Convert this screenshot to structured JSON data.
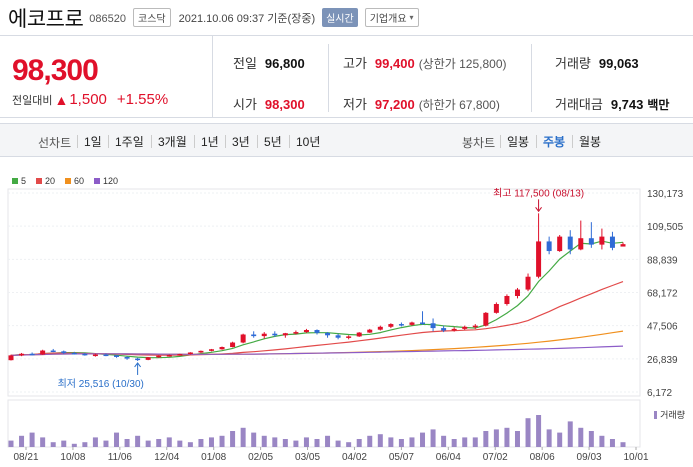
{
  "header": {
    "title": "에코프로",
    "code": "086520",
    "market": "코스닥",
    "datetime": "2021.10.06 09:37 기준(장중)",
    "realtime": "실시간",
    "overview": "기업개요"
  },
  "quote": {
    "price": "98,300",
    "change_label": "전일대비",
    "change_arrow": "▲",
    "change": "1,500",
    "change_pct": "+1.55%",
    "prev_close_label": "전일",
    "prev_close": "96,800",
    "high_label": "고가",
    "high": "99,400",
    "upper_limit": "(상한가 125,800)",
    "volume_label": "거래량",
    "volume": "99,063",
    "open_label": "시가",
    "open": "98,300",
    "low_label": "저가",
    "low": "97,200",
    "lower_limit": "(하한가 67,800)",
    "trade_value_label": "거래대금",
    "trade_value": "9,743",
    "trade_value_unit": "백만"
  },
  "tabs": {
    "line_label": "선차트",
    "line": [
      "1일",
      "1주일",
      "3개월",
      "1년",
      "3년",
      "5년",
      "10년"
    ],
    "candle_label": "봉차트",
    "candle": [
      "일봉",
      "주봉",
      "월봉"
    ],
    "active": "주봉"
  },
  "colors": {
    "up": "#e0102a",
    "down": "#2f6bd6",
    "ma5": "#44aa44",
    "ma20": "#e24a4a",
    "ma60": "#f0901e",
    "ma120": "#8c5cc8",
    "volume": "#9a86c4"
  },
  "chart_data": {
    "type": "candlestick",
    "legend": [
      {
        "name": "5",
        "color": "#44aa44"
      },
      {
        "name": "20",
        "color": "#e24a4a"
      },
      {
        "name": "60",
        "color": "#f0901e"
      },
      {
        "name": "120",
        "color": "#8c5cc8"
      }
    ],
    "y_ticks": [
      "130,173",
      "109,505",
      "88,839",
      "68,172",
      "47,506",
      "26,839",
      "6,172"
    ],
    "ylim": [
      6172,
      130173
    ],
    "x_ticks": [
      "08/21",
      "10/08",
      "11/06",
      "12/04",
      "01/08",
      "02/05",
      "03/05",
      "04/02",
      "05/07",
      "06/04",
      "07/02",
      "08/06",
      "09/03",
      "10/01"
    ],
    "annotations": {
      "high": "최고 117,500 (08/13)",
      "low": "최저 25,516 (10/30)"
    },
    "volume_label": "거래량",
    "candles": [
      [
        26000,
        29500,
        25800,
        29000
      ],
      [
        29000,
        30500,
        28500,
        30000
      ],
      [
        30000,
        30800,
        29000,
        29500
      ],
      [
        29500,
        32500,
        29300,
        32000
      ],
      [
        32000,
        33000,
        31000,
        31500
      ],
      [
        31500,
        32000,
        29800,
        30500
      ],
      [
        30500,
        31200,
        29500,
        30000
      ],
      [
        30000,
        30500,
        28800,
        29000
      ],
      [
        29000,
        30000,
        28200,
        29500
      ],
      [
        29500,
        30200,
        28500,
        29000
      ],
      [
        29000,
        29200,
        27500,
        28000
      ],
      [
        28000,
        28300,
        26200,
        27000
      ],
      [
        27000,
        27500,
        25516,
        26200
      ],
      [
        26200,
        28000,
        26000,
        27800
      ],
      [
        27800,
        29000,
        27500,
        28800
      ],
      [
        28800,
        29500,
        28200,
        29200
      ],
      [
        29200,
        30000,
        28800,
        29800
      ],
      [
        29800,
        31000,
        29500,
        30800
      ],
      [
        30800,
        32000,
        30500,
        31800
      ],
      [
        31800,
        33000,
        31500,
        32800
      ],
      [
        32800,
        34500,
        32500,
        34200
      ],
      [
        34200,
        37500,
        34000,
        37000
      ],
      [
        37000,
        42500,
        36500,
        42000
      ],
      [
        42000,
        44000,
        40000,
        41000
      ],
      [
        41000,
        43500,
        39500,
        42500
      ],
      [
        42500,
        44000,
        40500,
        41500
      ],
      [
        41500,
        43000,
        40000,
        42800
      ],
      [
        42800,
        44500,
        42000,
        43500
      ],
      [
        43500,
        45500,
        43000,
        44800
      ],
      [
        44800,
        45200,
        42000,
        43000
      ],
      [
        43000,
        43500,
        40000,
        41500
      ],
      [
        41500,
        42500,
        39000,
        40000
      ],
      [
        40000,
        41500,
        39000,
        40800
      ],
      [
        40800,
        43500,
        40500,
        43200
      ],
      [
        43200,
        45500,
        43000,
        45000
      ],
      [
        45000,
        47500,
        44500,
        46800
      ],
      [
        46800,
        49000,
        46000,
        48500
      ],
      [
        48500,
        49500,
        47000,
        48000
      ],
      [
        48000,
        50000,
        47500,
        49500
      ],
      [
        49500,
        56500,
        48000,
        49000
      ],
      [
        49000,
        52000,
        44000,
        46000
      ],
      [
        46000,
        47500,
        43500,
        44500
      ],
      [
        44500,
        46500,
        43800,
        45500
      ],
      [
        45500,
        47500,
        44800,
        46800
      ],
      [
        46800,
        48500,
        45500,
        47500
      ],
      [
        47500,
        56000,
        47000,
        55500
      ],
      [
        55500,
        62000,
        55000,
        61000
      ],
      [
        61000,
        67000,
        60000,
        66000
      ],
      [
        66000,
        71000,
        64500,
        70000
      ],
      [
        70000,
        80000,
        69000,
        78000
      ],
      [
        78000,
        117500,
        77000,
        100000
      ],
      [
        100000,
        103000,
        92000,
        94000
      ],
      [
        94000,
        104000,
        93500,
        103000
      ],
      [
        103000,
        107000,
        92000,
        95000
      ],
      [
        95000,
        113000,
        94500,
        102000
      ],
      [
        102000,
        112000,
        96000,
        98000
      ],
      [
        98000,
        108000,
        95000,
        103000
      ],
      [
        103000,
        106000,
        94500,
        96000
      ],
      [
        96800,
        99400,
        97200,
        98300
      ]
    ],
    "volumes": [
      0.2,
      0.35,
      0.45,
      0.3,
      0.15,
      0.2,
      0.1,
      0.15,
      0.3,
      0.2,
      0.45,
      0.25,
      0.35,
      0.2,
      0.25,
      0.3,
      0.2,
      0.15,
      0.25,
      0.3,
      0.35,
      0.5,
      0.6,
      0.45,
      0.35,
      0.3,
      0.25,
      0.2,
      0.3,
      0.25,
      0.35,
      0.2,
      0.15,
      0.25,
      0.35,
      0.4,
      0.3,
      0.25,
      0.3,
      0.45,
      0.55,
      0.35,
      0.25,
      0.3,
      0.3,
      0.5,
      0.55,
      0.6,
      0.5,
      0.9,
      1.0,
      0.55,
      0.45,
      0.8,
      0.6,
      0.5,
      0.35,
      0.25,
      0.15
    ]
  }
}
